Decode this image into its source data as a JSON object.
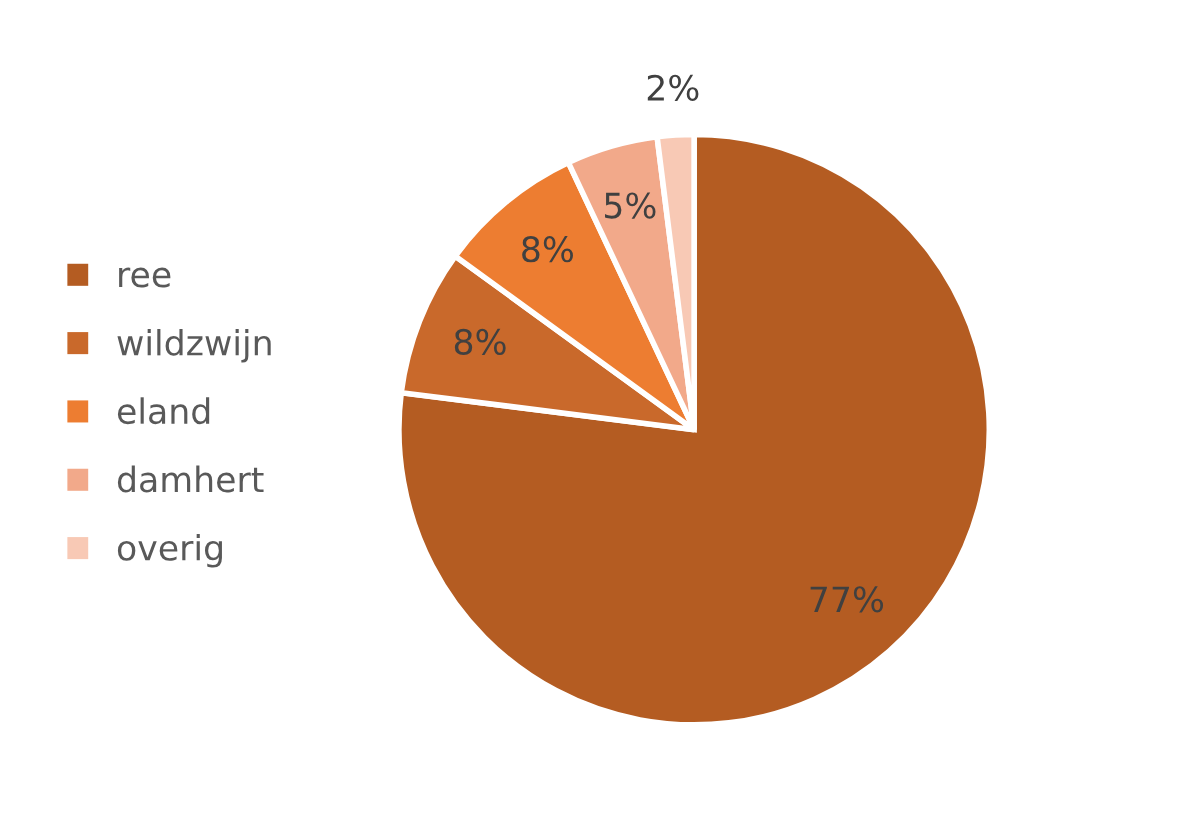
{
  "chart_data": {
    "type": "pie",
    "categories": [
      "ree",
      "wildzwijn",
      "eland",
      "damhert",
      "overig"
    ],
    "values": [
      77,
      8,
      8,
      5,
      2
    ],
    "colors": [
      "#b45c22",
      "#c9692b",
      "#ed7d31",
      "#f2a98a",
      "#f8c9b5"
    ],
    "value_labels": [
      "77%",
      "8%",
      "8%",
      "5%",
      "2%"
    ],
    "legend": "left"
  }
}
